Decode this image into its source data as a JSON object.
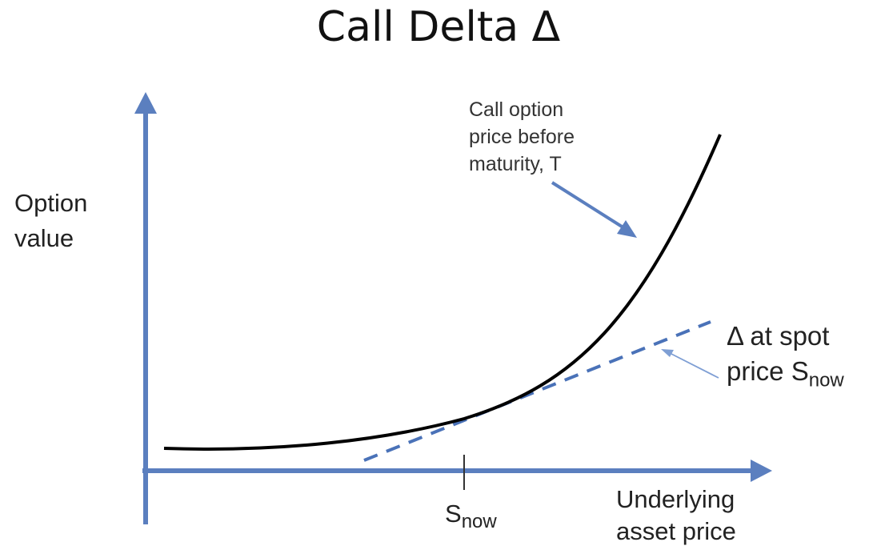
{
  "title": "Call Delta Δ",
  "y_axis_label": [
    "Option",
    "value"
  ],
  "x_axis_label": [
    "Underlying",
    "asset price"
  ],
  "callout": [
    "Call option",
    "price before",
    "maturity, T"
  ],
  "delta_label": {
    "line1": "Δ at spot",
    "line2_main": "price S",
    "line2_sub": "now"
  },
  "spot_label": {
    "main": "S",
    "sub": "now"
  },
  "colors": {
    "axis": "#5b7fbf",
    "curve": "#000000",
    "tangent": "#4a72b8",
    "text": "#222222"
  }
}
